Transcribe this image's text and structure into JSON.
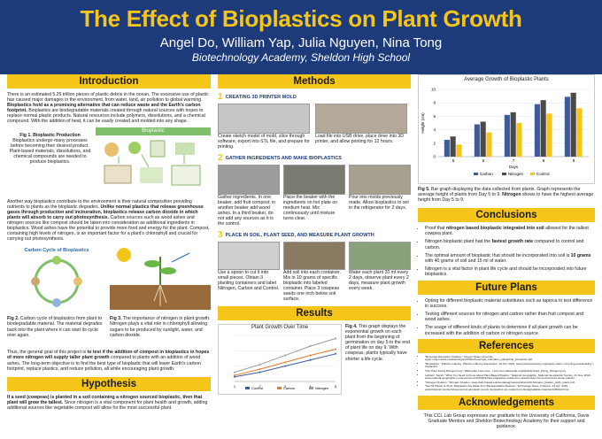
{
  "header": {
    "title": "The Effect of Bioplastics on Plant Growth",
    "authors": "Angel Do, William Yap, Julia Nguyen, Nina Tong",
    "school": "Biotechnology Academy, Sheldon High School"
  },
  "introduction": {
    "heading": "Introduction",
    "p1_a": "There is an estimated 5.25 trillion pieces of plastic debris in the ocean. The excessive use of plastic has caused major damages in the environment, from water, land, air pollution to global warming.",
    "p1_b": " Bioplastics hold as a promising alternative that can reduce waste and the Earth's carbon footprint.",
    "p1_c": " Bioplastics are biodegradable materials created through natural sources with hopes to replace normal plastic products. Natural resources include polymers, dissolutions, and a chemical compound. With the addition of heat, it can be easily created and molded into any shape.",
    "fig1_label": "Fig 1. Bioplastic Production",
    "fig1_text": "Bioplastics undergo many processes before becoming their desired product. Plant-based materials, dissolutions, and chemical compounds are needed to produce bioplastics.",
    "fig1_banner": "Bioplastic",
    "p2_a": "Another way bioplastics contribute to the environment is their natural composition providing nutrients to plants as the bioplastic degrades.",
    "p2_b": " Unlike normal plastics that release greenhouse gases through production and incineration, bioplastics release carbon dioxide in which plants will absorb to carry out photosynthesis.",
    "p2_c": " Carbon sources such as wood ashes and nitrogen sources like compost should be taken into consideration as additional ingredients in bioplastics. Wood ashes have the potential to provide more food and energy for the plant. Compost, containing high levels of nitrogen, is an important factor for a plant's chlorophyll and crucial for carrying out photosynthesis.",
    "fig2_diagram_title": "Carbon Cycle of Bioplastics",
    "fig2_caption_label": "Fig 2.",
    "fig2_caption": " Carbon cycle of bioplastics from plant to biodegradable material. The material degrades back into the plant where it can start its cycle over again.",
    "fig3_caption_label": "Fig 3.",
    "fig3_caption": " The importance of nitrogen in plant growth. Nitrogen plays a vital role in chlorophyll allowing sugars to be produced by sunlight, water, and carbon dioxide.",
    "p3_a": "Thus, the general goal of this project is",
    "p3_b": " to test if the addition of compost in bioplastics in hopes of more nitrogen will supply taller plant growth",
    "p3_c": " compared to plants with an addition of wood ashes. The long-term objective is to find the best type of bioplastic that will lower Earth's carbon footprint, replace plastics, and reduce pollution, all while encouraging plant growth."
  },
  "hypothesis": {
    "heading": "Hypothesis",
    "text_a": "If a seed (cowpeas) is planted in a soil containing a nitrogen sourced bioplastic, then that plant will grow the tallest.",
    "text_b": " Since nitrogen is a vital component for plant health and growth, adding additional sources like vegetable compost will allow for the most successful plant."
  },
  "methods": {
    "heading": "Methods",
    "step1_num": "1",
    "step1_title": "CREATING 3D PRINTER MOLD",
    "step1_a": "Create sketch model of mold, slice through software, export into STL file, and prepare for printing.",
    "step1_b": "Load file into USB drive, place drive into 3D printer, and allow printing for 12 hours.",
    "step2_num": "2",
    "step2_title": "GATHER INGREDIENTS AND MAKE BIOPLASTICS",
    "step2_a": "Gather ingredients. In one beaker, add fruit compost; in another beaker add wood ashes. In a third beaker, do not add any sources as it is the control.",
    "step2_b": "Place the beaker with the ingredients on hot plate on medium heat. Mix continuously until mixture turns clear.",
    "step2_c": "Pour into molds previously made. Allow bioplastics to set in the refrigerator for 2 days.",
    "step3_num": "3",
    "step3_title": "PLACE IN SOIL, PLANT SEED, AND MEASURE PLANT GROWTH",
    "step3_a": "Use a spoon to cut it into small pieces. Obtain 3 planting containers and label Nitrogen, Carbon and Control.",
    "step3_b": "Add soil into each container. Mix in 10 grams of specific bioplastic into labeled container. Place 3 cowpeas seeds one inch below soil surface.",
    "step3_c": "Water each plant 20 ml every 2 days, observe plant every 2 days, measure plant growth every week."
  },
  "results": {
    "heading": "Results",
    "fig4_label": "Fig 4.",
    "fig4_text": " This graph displays the exponential growth on each plant from the beginning of germination on day 5 to the end of plant life on day 9. With cowpeas, plants typically have shorter a life cycle."
  },
  "fig5": {
    "label": "Fig 5.",
    "text_a": " Bar graph displaying the data collected from plants. Graph represents the average height of plants from Day 5 to 9.",
    "text_b": " Nitrogen",
    "text_c": " shows to have the highest average height from Day 5 to 9."
  },
  "conclusions": {
    "heading": "Conclusions",
    "items": [
      {
        "pre": "Proof that ",
        "bold": "nitrogen based bioplastic integrated into soil",
        "post": " allowed for the tallest cowpea plant."
      },
      {
        "pre": "Nitrogen bioplastic plant had the ",
        "bold": "fastest growth rate",
        "post": " compared to control and carbon."
      },
      {
        "pre": "The optimal amount of bioplastic that should be incorporated into soil is ",
        "bold": "10 grams",
        "post": " with 40 grams of soil and 15 ml of water."
      },
      {
        "pre": "Nitrogen is a vital factor in plant life cycle and should be incorporated into future bioplastics.",
        "bold": "",
        "post": ""
      }
    ]
  },
  "future_plans": {
    "heading": "Future Plans",
    "items": [
      "Opting for different bioplastic material substitutes such as tapioca to test difference in success.",
      "Testing different sources for nitrogen and carbon rather than fruit compost and wood ashes.",
      "The usage of different kinds of plants to determine if all plant growth can be increased with the addition of carbon or nitrogen source."
    ]
  },
  "references": {
    "heading": "References",
    "items": [
      "\"Beverage Education Initiative.\" Oregon State University, agsci.oregonstate.edu/sites/agscid7/files/beverage_education_plasticfruit_interactive.pdf.",
      "\"Bioplastics.\" Plastics Industry, Plastics Industry Association, 19 Oct. 2019, www.plasticsindustry.org/supply-chain / recycling-sustainability / bioplastics.",
      "\"File:Plant Fixing Nitrogen.png.\" Wikimedia Commons , commons.wikimedia.org/wiki/File:Plant_Fixing_Nitrogen.png.",
      "Leblanc, Sarah. \"What You Need to Know about Plant-Based Plastics.\" National Geographic, National Geographic Society, 21 Nov. 2018, www.national-geographic.com/environment/2018/11/are-bioplastics-made-from-plants-better-for-environment-ocean-plastic/.",
      "\"Nitrogen Fixation.\" Nitrogen Fixation, www.ctahr.hawaii.edu/sustainag/news/articles/v20-Nitrogen_fixation_ctahr_plants.pdf.",
      "\"Not All Plastic Is Toxic: Bioplastics Are Made from Biodegradable Material.\" Technology News, Firstpost, 13 Apr. 2019, www.firstpost.com/tech/science/not-all-plastic-is-toxic-bioplastics-are-made-from-biodegradable-material-6465322.html."
    ]
  },
  "acknowledgements": {
    "heading": "Acknowledgements",
    "text": "This CCL Lab Group expresses our gratitude to the University of California, Davis Graduate Mentors and Sheldon Biotechnology Academy for their support and guidance."
  },
  "colors": {
    "header": "#1d3a7a",
    "accent": "#f6c51a",
    "carbon": "#3d5a9a",
    "nitrogen": "#4a4a4a",
    "control": "#f6c51a"
  },
  "chart_data": [
    {
      "type": "line",
      "title": "Plant Growth Over Time",
      "series": [
        {
          "name": "Control",
          "values": [
            0.6,
            1.2,
            2.0,
            2.8,
            3.6
          ]
        },
        {
          "name": "Carbon",
          "values": [
            0.8,
            1.6,
            2.5,
            3.4,
            4.2
          ]
        },
        {
          "name": "Nitrogen",
          "values": [
            1.2,
            2.2,
            3.4,
            4.6,
            5.6
          ]
        }
      ],
      "x": [
        "1",
        "2",
        "3",
        "4",
        "5"
      ]
    },
    {
      "type": "bar",
      "title": "Average Growth of Bioplastic Plants",
      "ylabel": "Height (cm)",
      "xlabel": "Days",
      "categories": [
        "5",
        "6",
        "7",
        "8",
        "9"
      ],
      "ylim": [
        0,
        10
      ],
      "yticks": [
        "0",
        "2",
        "4",
        "6",
        "8",
        "10"
      ],
      "series": [
        {
          "name": "Carbon",
          "values": [
            2.5,
            4.8,
            6.2,
            7.8,
            8.9
          ]
        },
        {
          "name": "Nitrogen",
          "values": [
            3.0,
            5.2,
            6.6,
            8.4,
            9.5
          ]
        },
        {
          "name": "Control",
          "values": [
            1.8,
            3.6,
            5.0,
            6.4,
            7.2
          ]
        }
      ]
    }
  ]
}
